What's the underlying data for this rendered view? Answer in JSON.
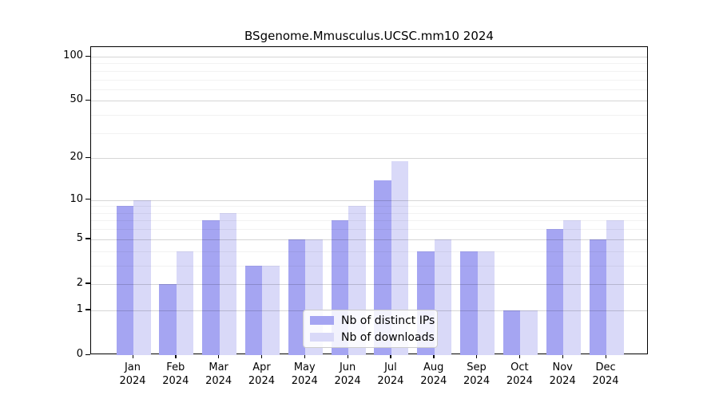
{
  "chart_data": {
    "type": "bar",
    "title": "BSgenome.Mmusculus.UCSC.mm10 2024",
    "scale": "log1p",
    "grid": true,
    "legend_position": "bottom-center-inside",
    "categories": [
      {
        "month": "Jan",
        "year": "2024"
      },
      {
        "month": "Feb",
        "year": "2024"
      },
      {
        "month": "Mar",
        "year": "2024"
      },
      {
        "month": "Apr",
        "year": "2024"
      },
      {
        "month": "May",
        "year": "2024"
      },
      {
        "month": "Jun",
        "year": "2024"
      },
      {
        "month": "Jul",
        "year": "2024"
      },
      {
        "month": "Aug",
        "year": "2024"
      },
      {
        "month": "Sep",
        "year": "2024"
      },
      {
        "month": "Oct",
        "year": "2024"
      },
      {
        "month": "Nov",
        "year": "2024"
      },
      {
        "month": "Dec",
        "year": "2024"
      }
    ],
    "series": [
      {
        "name": "Nb of distinct IPs",
        "key": "distinct-ips",
        "color": "#a5a5f2",
        "values": [
          9,
          2,
          7,
          3,
          5,
          7,
          14,
          4,
          4,
          1,
          6,
          5
        ]
      },
      {
        "name": "Nb of downloads",
        "key": "downloads",
        "color": "#d9d9f8",
        "values": [
          10,
          4,
          8,
          3,
          5,
          9,
          19,
          5,
          4,
          1,
          7,
          7
        ]
      }
    ],
    "ylim": [
      0,
      100
    ],
    "y_major_ticks": [
      0,
      1,
      2,
      5,
      10,
      20,
      50,
      100
    ],
    "y_minor_ticks": [
      3,
      4,
      6,
      7,
      8,
      9,
      30,
      40,
      60,
      70,
      80,
      90
    ]
  }
}
